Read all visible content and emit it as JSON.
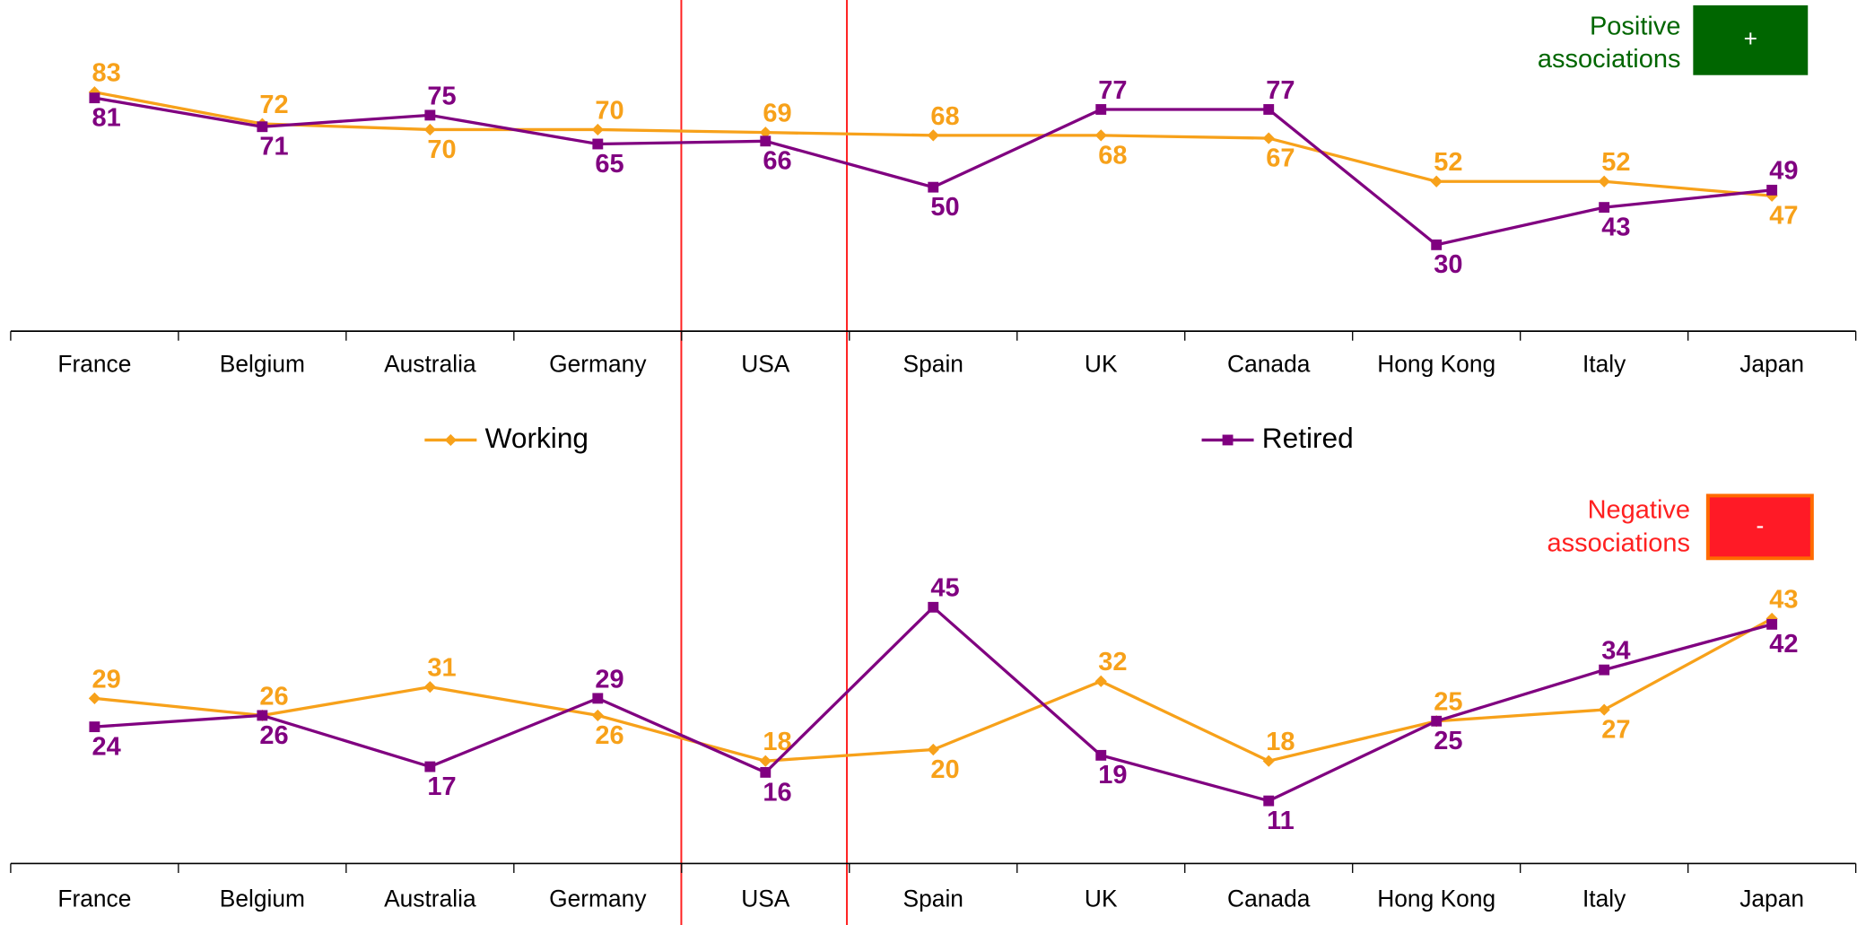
{
  "chart_data": [
    {
      "type": "line",
      "annotation": [
        "Positive",
        "associations"
      ],
      "annotation_color": "#006600",
      "badge": "+",
      "badge_color": "#006600",
      "badge_border": "#006600",
      "categories": [
        "France",
        "Belgium",
        "Australia",
        "Germany",
        "USA",
        "Spain",
        "UK",
        "Canada",
        "Hong Kong",
        "Italy",
        "Japan"
      ],
      "series": [
        {
          "name": "Working",
          "color": "#f7a11a",
          "marker": "diamond",
          "values": [
            83,
            72,
            70,
            70,
            69,
            68,
            68,
            67,
            52,
            52,
            47
          ]
        },
        {
          "name": "Retired",
          "color": "#800080",
          "marker": "square",
          "values": [
            81,
            71,
            75,
            65,
            66,
            50,
            77,
            77,
            30,
            43,
            49
          ]
        }
      ],
      "ylim": [
        0,
        115
      ]
    },
    {
      "type": "line",
      "annotation": [
        "Negative",
        "associations"
      ],
      "annotation_color": "#ff2020",
      "badge": "-",
      "badge_color": "#ff1a26",
      "badge_border": "#ff6a00",
      "categories": [
        "France",
        "Belgium",
        "Australia",
        "Germany",
        "USA",
        "Spain",
        "UK",
        "Canada",
        "Hong Kong",
        "Italy",
        "Japan"
      ],
      "series": [
        {
          "name": "Working",
          "color": "#f7a11a",
          "marker": "diamond",
          "values": [
            29,
            26,
            31,
            26,
            18,
            20,
            32,
            18,
            25,
            27,
            43
          ]
        },
        {
          "name": "Retired",
          "color": "#800080",
          "marker": "square",
          "values": [
            24,
            26,
            17,
            29,
            16,
            45,
            19,
            11,
            25,
            34,
            42
          ]
        }
      ],
      "ylim": [
        0,
        70
      ]
    }
  ]
}
